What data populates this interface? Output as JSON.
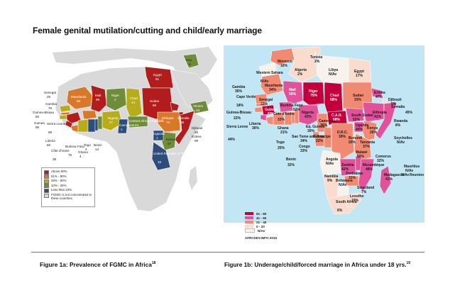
{
  "page_title": "Female genital mutilation/cutting and child/early marriage",
  "left_figure": {
    "caption": "Figure 1a: Prevalence of FGMC in Africa",
    "caption_ref": "18",
    "legend": [
      {
        "label": "Above 80%",
        "color": "#b11c1c"
      },
      {
        "label": "51% - 80%",
        "color": "#d8792a"
      },
      {
        "label": "26% - 50%",
        "color": "#b7ad1c"
      },
      {
        "label": "10% - 25%",
        "color": "#6e8c3a"
      },
      {
        "label": "Less than 10%",
        "color": "#2e4d7a"
      },
      {
        "label": "FGM/C is not concentrated in these countries",
        "color": "#d9d9d9"
      }
    ],
    "labels": {
      "egypt": "Egypt",
      "egypt_v": "91",
      "iraq": "Iraq",
      "iraq_v": "8",
      "mauritania": "Mauritania",
      "mauritania_v": "69",
      "mali": "Mali",
      "mali_v": "89",
      "niger": "Niger",
      "niger_v": "2",
      "chad": "Chad",
      "chad_v": "44",
      "sudan": "Sudan",
      "sudan_v": "88",
      "yemen": "Yemen",
      "yemen_v": "23",
      "senegal": "Senegal",
      "senegal_v": "26",
      "gambia": "Gambia",
      "gambia_v": "76",
      "guinea_bissau": "Guinea-Bissau",
      "guinea_bissau_v": "50",
      "guinea": "Guinea",
      "guinea_v": "96",
      "sierra_leone": "Sierra Leone",
      "sierra_leone_v": "88",
      "liberia": "Liberia",
      "liberia_v": "66",
      "cote": "Côte d'Ivoire",
      "cote_v": "38",
      "burkina": "Burkina Faso",
      "burkina_v": "76",
      "ghana": "Ghana",
      "ghana_v": "4",
      "togo": "Togo",
      "togo_v": "4",
      "benin": "Benin",
      "benin_v": "13",
      "nigeria": "Nigeria",
      "nigeria_v": "27",
      "cameroon": "Cameroon",
      "cameroon_v": "1",
      "car": "Central African Republic",
      "car_v": "24",
      "eritrea": "Eritrea",
      "eritrea_v": "89",
      "djibouti": "Djibouti",
      "djibouti_v": "93",
      "ethiopia": "Ethiopia",
      "ethiopia_v": "74",
      "somalia": "Somalia",
      "somalia_v": "98",
      "kenya": "Kenya",
      "kenya_v": "27",
      "uganda": "Uganda",
      "uganda_v": "1",
      "tanzania": "United Republic of Tanzania",
      "tanzania_v": "15"
    }
  },
  "right_figure": {
    "caption": "Figure 1b: Underage/child/forced marriage in Africa under 18 yrs.",
    "caption_ref": "19",
    "source": "AFRI-DEV.INFO 2015",
    "legend": [
      {
        "label": "61 - 80",
        "color": "#c2003c"
      },
      {
        "label": "41 - 60",
        "color": "#e0539a"
      },
      {
        "label": "21 - 40",
        "color": "#f08a72"
      },
      {
        "label": "0 - 20",
        "color": "#f9dccd"
      },
      {
        "label": "N/Av",
        "color": "#f7f2ec"
      }
    ],
    "labels": {
      "tunisia": "Tunisia",
      "tunisia_v": "2%",
      "morocco": "Morocco",
      "morocco_v": "16%",
      "algeria": "Algeria",
      "algeria_v": "2%",
      "libya": "Libya",
      "libya_v": "N/Av",
      "egypt": "Egypt",
      "egypt_v": "17%",
      "western_sahara": "Western Sahara",
      "western_sahara_v": "N/Av",
      "mauritania": "Mauritania",
      "mauritania_v": "34%",
      "mali": "Mali",
      "mali_v": "55%",
      "niger": "Niger",
      "niger_v": "75%",
      "chad": "Chad",
      "chad_v": "68%",
      "sudan": "Sudan",
      "sudan_v": "33%",
      "eritrea": "Eritrea",
      "eritrea_v": "47%",
      "djibouti": "Djibouti",
      "djibouti_v": "5%",
      "gambia": "Gambia",
      "gambia_v": "36%",
      "senegal": "Senegal",
      "senegal_v": "33%",
      "cape_verde": "Cape Verde",
      "cape_verde_v": "18%",
      "burkina": "Burkina Faso",
      "burkina_v": "52%",
      "guinea": "Guinea",
      "guinea_v": "63%",
      "guinea_bissau": "Guinea-Bissau",
      "guinea_bissau_v": "22%",
      "cote": "Cote d'Ivoire",
      "cote_v": "33%",
      "nigeria": "Nigeria",
      "nigeria_v": "43%",
      "south_sudan": "South Sudan",
      "south_sudan_v": "52%",
      "ethiopia": "Ethiopia",
      "ethiopia_v": "41%",
      "somalia": "Somalia",
      "somalia_v": "45%",
      "sierra_leone": "Sierra Leone",
      "sierra_leone_v": "44%",
      "liberia": "Liberia",
      "liberia_v": "36%",
      "ghana": "Ghana",
      "ghana_v": "21%",
      "cameroon": "Cameroon",
      "cameroon_v": "36%",
      "car": "C.A.R.",
      "car_v": "68%",
      "togo": "Togo",
      "togo_v": "25%",
      "eq_guinea": "Eq. Guinea",
      "eq_guinea_v": "30%",
      "sao_tome": "Sao Tome and Principe",
      "sao_tome_v": "34%",
      "gabon": "Gabon",
      "gabon_v": "22%",
      "benin": "Benin",
      "benin_v": "32%",
      "congo": "Congo",
      "congo_v": "33%",
      "drc": "D.R.C.",
      "drc_v": "39%",
      "uganda": "Uganda",
      "uganda_v": "40%",
      "kenya": "Kenya",
      "kenya_v": "26%",
      "rwanda": "Rwanda",
      "rwanda_v": "8%",
      "burundi": "Burundi",
      "burundi_v": "20%",
      "tanzania": "Tanzania",
      "tanzania_v": "37%",
      "seychelles": "Seychelles",
      "seychelles_v": "N/Av",
      "angola": "Angola",
      "angola_v": "N/Av",
      "malawi": "Malawi",
      "malawi_v": "50%",
      "comoros": "Comoros",
      "comoros_v": "32%",
      "zambia": "Zambia",
      "zambia_v": "42%",
      "mozambique": "Mozambique",
      "mozambique_v": "48%",
      "mauritius": "Mauritius",
      "mauritius_v": "N/Av",
      "reunion": "Reunion",
      "reunion_v": "N/Av",
      "zimbabwe": "Zimbabwe",
      "zimbabwe_v": "31%",
      "namibia": "Namibia",
      "namibia_v": "9%",
      "botswana": "Botswana",
      "botswana_v": "N/Av",
      "madagascar": "Madagascar",
      "madagascar_v": "41%",
      "swaziland": "Swaziland",
      "swaziland_v": "7%",
      "lesotho": "Lesotho",
      "lesotho_v": "19%",
      "south_africa": "South Africa",
      "south_africa_v": "6%"
    }
  }
}
